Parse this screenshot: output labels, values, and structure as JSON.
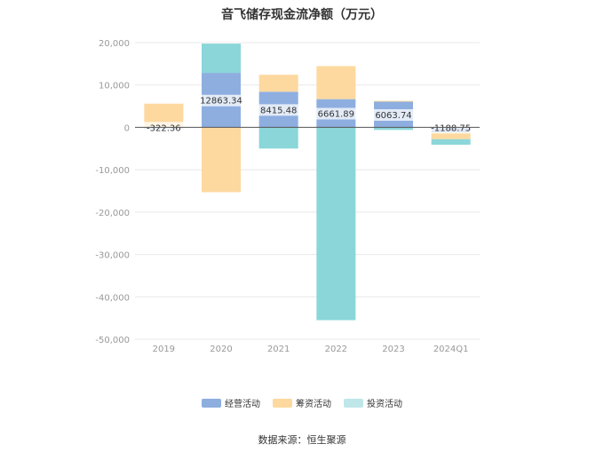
{
  "title": "音飞储存现金流净额（万元）",
  "source": "数据来源：恒生聚源",
  "colors": {
    "operating": "#8eaee0",
    "financing": "#fdd9a0",
    "investing": "#8ad6d9",
    "grid": "#e8e8e8",
    "axis_text": "#999999",
    "zero_line": "#555555"
  },
  "chart_data": {
    "type": "bar",
    "stacked": true,
    "title": "音飞储存现金流净额（万元）",
    "categories": [
      "2019",
      "2020",
      "2021",
      "2022",
      "2023",
      "2024Q1"
    ],
    "ylim": [
      -50000,
      20000
    ],
    "yticks": [
      20000,
      10000,
      0,
      -10000,
      -20000,
      -30000,
      -40000,
      -50000
    ],
    "ytick_labels": [
      "20,000",
      "10,000",
      "0",
      "-10,000",
      "-20,000",
      "-30,000",
      "-40,000",
      "-50,000"
    ],
    "grid": true,
    "legend_position": "bottom",
    "series": [
      {
        "name": "经营活动",
        "key": "operating",
        "values": [
          -322.36,
          12863.34,
          8415.48,
          6661.89,
          6063.74,
          -1188.75
        ]
      },
      {
        "name": "筹资活动",
        "key": "financing",
        "values": [
          5600,
          -15300,
          4000,
          7800,
          200,
          -1600
        ]
      },
      {
        "name": "投资活动",
        "key": "investing",
        "values": [
          0,
          6900,
          -5000,
          -45500,
          -600,
          -1300
        ]
      }
    ],
    "data_labels": [
      "-322.36",
      "12863.34",
      "8415.48",
      "6661.89",
      "6063.74",
      "-1188.75"
    ]
  }
}
